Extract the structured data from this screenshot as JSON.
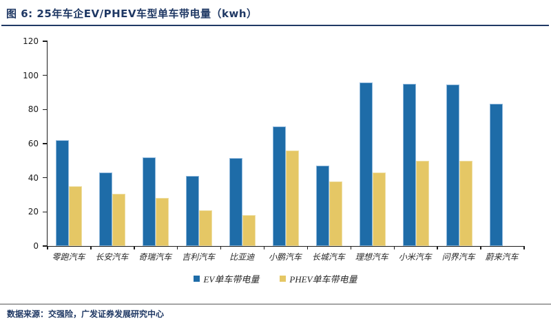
{
  "figure": {
    "title": "图 6: 25年车企EV/PHEV车型单车带电量（kwh）",
    "source_note": "数据来源：交强险，广发证券发展研究中心"
  },
  "colors": {
    "title_navy": "#1F3864",
    "axis": "#1a1a1a",
    "ev_bar": "#1E6CA8",
    "phev_bar": "#E5C765",
    "footer_rule": "#555555"
  },
  "chart_data": {
    "type": "bar",
    "title": "25年车企EV/PHEV车型单车带电量（kwh）",
    "xlabel": "",
    "ylabel": "",
    "ylim": [
      0,
      120
    ],
    "yticks": [
      0,
      20,
      40,
      60,
      80,
      100,
      120
    ],
    "grid": false,
    "legend_position": "bottom",
    "categories": [
      "零跑汽车",
      "长安汽车",
      "奇瑞汽车",
      "吉利汽车",
      "比亚迪",
      "小鹏汽车",
      "长城汽车",
      "理想汽车",
      "小米汽车",
      "问界汽车",
      "蔚来汽车"
    ],
    "series": [
      {
        "name": "EV单车带电量",
        "color": "#1E6CA8",
        "values": [
          62,
          43,
          52,
          41,
          51.5,
          70,
          47,
          96,
          95,
          94.5,
          83.5
        ]
      },
      {
        "name": "PHEV单车带电量",
        "color": "#E5C765",
        "values": [
          35,
          30.5,
          28,
          21,
          18,
          56,
          38,
          43,
          50,
          50,
          null
        ]
      }
    ]
  }
}
